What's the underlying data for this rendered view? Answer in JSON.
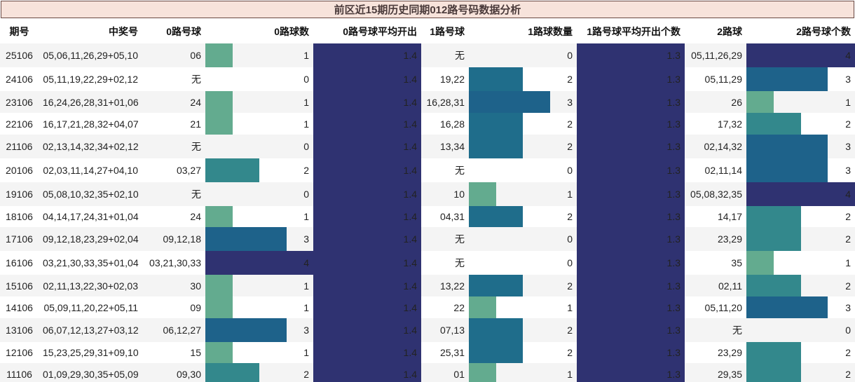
{
  "title": "前区近15期历史同期012路号码数据分析",
  "colors": {
    "avg": "#2f3271",
    "level": {
      "1": "#63ab8f",
      "2": "#33888c",
      "3": "#1e628a",
      "4": "#2f3271"
    },
    "level_alt": {
      "2": "#1f6d8b"
    },
    "row_even": "#ffffff",
    "row_odd": "#f4f4f4"
  },
  "chart_data": {
    "type": "table",
    "title": "前区近15期历史同期012路号码数据分析",
    "max_count": 4,
    "columns": [
      "期号",
      "中奖号",
      "0路号球",
      "0路球数",
      "0路号球平均开出",
      "1路号球",
      "1路球数量",
      "1路号球平均开出个数",
      "2路球",
      "2路号球个数"
    ],
    "rows": [
      {
        "issue": "25106",
        "numbers": "05,06,11,26,29+05,10",
        "r0_balls": "06",
        "r0_count": 1,
        "r0_avg": "1.4",
        "r1_balls": "无",
        "r1_count": 0,
        "r1_avg": "1.3",
        "r2_balls": "05,11,26,29",
        "r2_count": 4
      },
      {
        "issue": "24106",
        "numbers": "05,11,19,22,29+02,12",
        "r0_balls": "无",
        "r0_count": 0,
        "r0_avg": "1.4",
        "r1_balls": "19,22",
        "r1_count": 2,
        "r1_avg": "1.3",
        "r2_balls": "05,11,29",
        "r2_count": 3
      },
      {
        "issue": "23106",
        "numbers": "16,24,26,28,31+01,06",
        "r0_balls": "24",
        "r0_count": 1,
        "r0_avg": "1.4",
        "r1_balls": "16,28,31",
        "r1_count": 3,
        "r1_avg": "1.3",
        "r2_balls": "26",
        "r2_count": 1
      },
      {
        "issue": "22106",
        "numbers": "16,17,21,28,32+04,07",
        "r0_balls": "21",
        "r0_count": 1,
        "r0_avg": "1.4",
        "r1_balls": "16,28",
        "r1_count": 2,
        "r1_avg": "1.3",
        "r2_balls": "17,32",
        "r2_count": 2
      },
      {
        "issue": "21106",
        "numbers": "02,13,14,32,34+02,12",
        "r0_balls": "无",
        "r0_count": 0,
        "r0_avg": "1.4",
        "r1_balls": "13,34",
        "r1_count": 2,
        "r1_avg": "1.3",
        "r2_balls": "02,14,32",
        "r2_count": 3
      },
      {
        "issue": "20106",
        "numbers": "02,03,11,14,27+04,10",
        "r0_balls": "03,27",
        "r0_count": 2,
        "r0_avg": "1.4",
        "r1_balls": "无",
        "r1_count": 0,
        "r1_avg": "1.3",
        "r2_balls": "02,11,14",
        "r2_count": 3
      },
      {
        "issue": "19106",
        "numbers": "05,08,10,32,35+02,10",
        "r0_balls": "无",
        "r0_count": 0,
        "r0_avg": "1.4",
        "r1_balls": "10",
        "r1_count": 1,
        "r1_avg": "1.3",
        "r2_balls": "05,08,32,35",
        "r2_count": 4
      },
      {
        "issue": "18106",
        "numbers": "04,14,17,24,31+01,04",
        "r0_balls": "24",
        "r0_count": 1,
        "r0_avg": "1.4",
        "r1_balls": "04,31",
        "r1_count": 2,
        "r1_avg": "1.3",
        "r2_balls": "14,17",
        "r2_count": 2
      },
      {
        "issue": "17106",
        "numbers": "09,12,18,23,29+02,04",
        "r0_balls": "09,12,18",
        "r0_count": 3,
        "r0_avg": "1.4",
        "r1_balls": "无",
        "r1_count": 0,
        "r1_avg": "1.3",
        "r2_balls": "23,29",
        "r2_count": 2
      },
      {
        "issue": "16106",
        "numbers": "03,21,30,33,35+01,04",
        "r0_balls": "03,21,30,33",
        "r0_count": 4,
        "r0_avg": "1.4",
        "r1_balls": "无",
        "r1_count": 0,
        "r1_avg": "1.3",
        "r2_balls": "35",
        "r2_count": 1
      },
      {
        "issue": "15106",
        "numbers": "02,11,13,22,30+02,03",
        "r0_balls": "30",
        "r0_count": 1,
        "r0_avg": "1.4",
        "r1_balls": "13,22",
        "r1_count": 2,
        "r1_avg": "1.3",
        "r2_balls": "02,11",
        "r2_count": 2
      },
      {
        "issue": "14106",
        "numbers": "05,09,11,20,22+05,11",
        "r0_balls": "09",
        "r0_count": 1,
        "r0_avg": "1.4",
        "r1_balls": "22",
        "r1_count": 1,
        "r1_avg": "1.3",
        "r2_balls": "05,11,20",
        "r2_count": 3
      },
      {
        "issue": "13106",
        "numbers": "06,07,12,13,27+03,12",
        "r0_balls": "06,12,27",
        "r0_count": 3,
        "r0_avg": "1.4",
        "r1_balls": "07,13",
        "r1_count": 2,
        "r1_avg": "1.3",
        "r2_balls": "无",
        "r2_count": 0
      },
      {
        "issue": "12106",
        "numbers": "15,23,25,29,31+09,10",
        "r0_balls": "15",
        "r0_count": 1,
        "r0_avg": "1.4",
        "r1_balls": "25,31",
        "r1_count": 2,
        "r1_avg": "1.3",
        "r2_balls": "23,29",
        "r2_count": 2
      },
      {
        "issue": "11106",
        "numbers": "01,09,29,30,35+05,09",
        "r0_balls": "09,30",
        "r0_count": 2,
        "r0_avg": "1.4",
        "r1_balls": "01",
        "r1_count": 1,
        "r1_avg": "1.3",
        "r2_balls": "29,35",
        "r2_count": 2
      }
    ]
  }
}
